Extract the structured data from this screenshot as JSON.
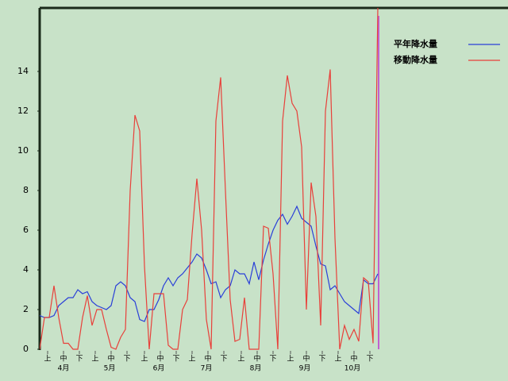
{
  "chart_data": {
    "type": "line",
    "x": [
      0,
      3,
      6,
      9,
      12,
      15,
      18,
      21,
      24,
      27,
      30,
      33,
      36,
      39,
      42,
      45,
      48,
      51,
      54,
      57,
      60,
      63,
      66,
      69,
      72,
      75,
      78,
      81,
      84,
      87,
      90,
      93,
      96,
      99,
      102,
      105,
      108,
      111,
      114,
      117,
      120,
      123,
      126,
      129,
      132,
      135,
      138,
      141,
      144,
      147,
      150,
      153,
      156,
      159,
      162,
      165,
      168,
      171,
      174,
      177,
      180,
      183,
      186,
      189,
      192,
      195,
      198,
      201,
      204,
      207,
      210,
      213
    ],
    "series": [
      {
        "name": "平年降水量",
        "color": "#2a3fd8",
        "values": [
          1.7,
          1.6,
          1.6,
          1.7,
          2.2,
          2.4,
          2.6,
          2.6,
          3.0,
          2.8,
          2.9,
          2.4,
          2.2,
          2.1,
          2.0,
          2.2,
          3.2,
          3.4,
          3.2,
          2.6,
          2.4,
          1.5,
          1.4,
          2.0,
          2.0,
          2.5,
          3.2,
          3.6,
          3.2,
          3.6,
          3.8,
          4.1,
          4.4,
          4.8,
          4.6,
          4.0,
          3.3,
          3.4,
          2.6,
          3.0,
          3.2,
          4.0,
          3.8,
          3.8,
          3.3,
          4.4,
          3.5,
          4.5,
          5.3,
          6.0,
          6.5,
          6.8,
          6.3,
          6.7,
          7.2,
          6.6,
          6.4,
          6.2,
          5.2,
          4.3,
          4.2,
          3.0,
          3.2,
          2.8,
          2.4,
          2.2,
          2.0,
          1.8,
          3.5,
          3.3,
          3.3,
          3.8
        ]
      },
      {
        "name": "移動降水量",
        "color": "#e8403a",
        "values": [
          0,
          1.6,
          1.6,
          3.2,
          1.6,
          0.3,
          0.3,
          0,
          0,
          1.6,
          2.7,
          1.2,
          2.0,
          2.0,
          1.0,
          0.1,
          0,
          0.6,
          1.0,
          8.0,
          11.8,
          11.0,
          4.2,
          0,
          2.8,
          2.8,
          2.8,
          0.2,
          0,
          0,
          2.0,
          2.5,
          5.8,
          8.6,
          6.0,
          1.5,
          0,
          11.5,
          13.7,
          8.0,
          2.5,
          0.4,
          0.5,
          2.6,
          0,
          0,
          0,
          6.2,
          6.1,
          3.8,
          0,
          11.5,
          13.8,
          12.4,
          12.0,
          10.2,
          2.0,
          8.4,
          6.7,
          1.2,
          12.0,
          14.1,
          5.6,
          0,
          1.2,
          0.5,
          1.0,
          0.4,
          3.6,
          3.4,
          0.3,
          17.2
        ]
      }
    ],
    "xlim": [
      0,
      214
    ],
    "xticks": [
      {
        "value": 5,
        "label": "上"
      },
      {
        "value": 15,
        "label": "中"
      },
      {
        "value": 25,
        "label": "下"
      },
      {
        "value": 35,
        "label": "上"
      },
      {
        "value": 45,
        "label": "中"
      },
      {
        "value": 55,
        "label": "下"
      },
      {
        "value": 66,
        "label": "上"
      },
      {
        "value": 76,
        "label": "中"
      },
      {
        "value": 86,
        "label": "下"
      },
      {
        "value": 96,
        "label": "上"
      },
      {
        "value": 106,
        "label": "中"
      },
      {
        "value": 116,
        "label": "下"
      },
      {
        "value": 127,
        "label": "上"
      },
      {
        "value": 137,
        "label": "中"
      },
      {
        "value": 147,
        "label": "下"
      },
      {
        "value": 158,
        "label": "上"
      },
      {
        "value": 168,
        "label": "中"
      },
      {
        "value": 178,
        "label": "下"
      },
      {
        "value": 188,
        "label": "上"
      },
      {
        "value": 198,
        "label": "中"
      },
      {
        "value": 208,
        "label": "下"
      }
    ],
    "month_labels": [
      {
        "value": 15,
        "label": "4月"
      },
      {
        "value": 44,
        "label": "5月"
      },
      {
        "value": 75,
        "label": "6月"
      },
      {
        "value": 105,
        "label": "7月"
      },
      {
        "value": 136,
        "label": "8月"
      },
      {
        "value": 167,
        "label": "9月"
      },
      {
        "value": 197,
        "label": "10月"
      }
    ],
    "ylim": [
      0,
      17.2
    ],
    "yticks": [
      0,
      2,
      4,
      6,
      8,
      10,
      12,
      14
    ],
    "legend": "right"
  }
}
